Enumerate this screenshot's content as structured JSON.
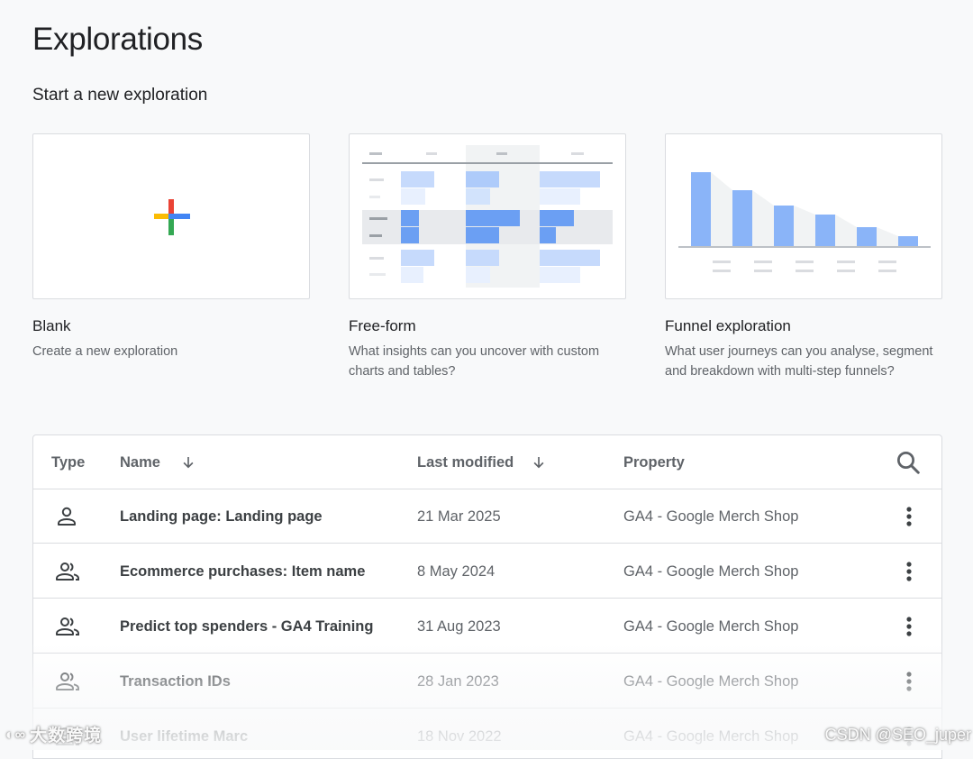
{
  "page": {
    "title": "Explorations"
  },
  "new_exploration": {
    "heading": "Start a new exploration",
    "templates": [
      {
        "title": "Blank",
        "description": "Create a new exploration",
        "icon": "plus-icon"
      },
      {
        "title": "Free-form",
        "description": "What insights can you uncover with custom charts and tables?",
        "icon": "free-form-table-thumbnail"
      },
      {
        "title": "Funnel exploration",
        "description": "What user journeys can you analyse, segment and breakdown with multi-step funnels?",
        "icon": "funnel-chart-thumbnail"
      }
    ]
  },
  "table": {
    "columns": {
      "type": "Type",
      "name": "Name",
      "last_modified": "Last modified",
      "property": "Property"
    },
    "rows": [
      {
        "type_icon": "person-icon",
        "name": "Landing page: Landing page",
        "last_modified": "21 Mar 2025",
        "property": "GA4 - Google Merch Shop"
      },
      {
        "type_icon": "people-icon",
        "name": "Ecommerce purchases: Item name",
        "last_modified": "8 May 2024",
        "property": "GA4 - Google Merch Shop"
      },
      {
        "type_icon": "people-icon",
        "name": "Predict top spenders - GA4 Training",
        "last_modified": "31 Aug 2023",
        "property": "GA4 - Google Merch Shop"
      },
      {
        "type_icon": "people-icon",
        "name": "Transaction IDs",
        "last_modified": "28 Jan 2023",
        "property": "GA4 - Google Merch Shop"
      },
      {
        "type_icon": "people-icon",
        "name": "User lifetime Marc",
        "last_modified": "18 Nov 2022",
        "property": "GA4 - Google Merch Shop"
      }
    ]
  },
  "watermarks": {
    "left": "大数跨境",
    "right": "CSDN @SEO_juper"
  },
  "colors": {
    "background": "#f8f9fa",
    "google_blue": "#4285f4",
    "google_red": "#ea4335",
    "google_yellow": "#fbbc04",
    "google_green": "#34a853",
    "thumbnail_bar": "#8ab4f8"
  }
}
